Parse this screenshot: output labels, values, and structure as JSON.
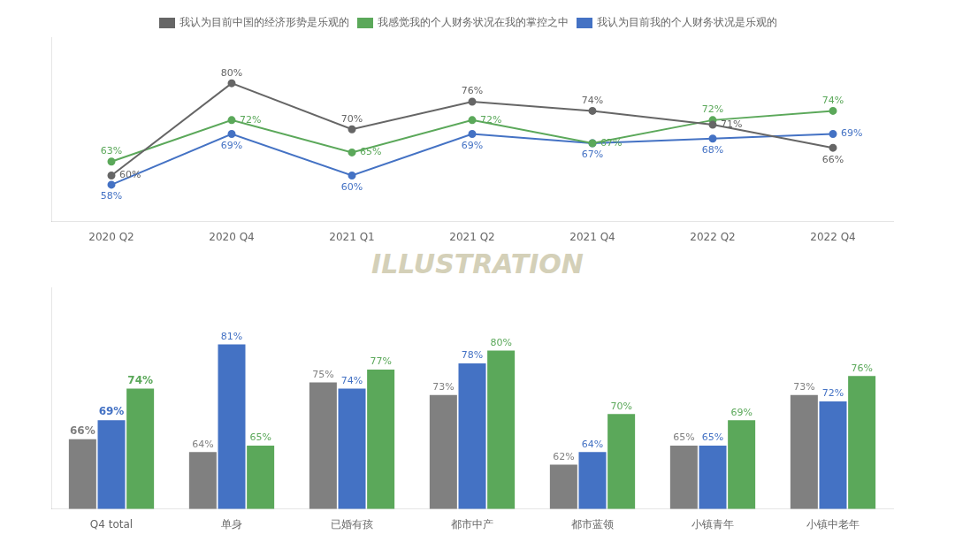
{
  "chart_data": [
    {
      "type": "line",
      "categories": [
        "2020 Q2",
        "2020 Q4",
        "2021 Q1",
        "2021 Q2",
        "2021 Q4",
        "2022 Q2",
        "2022 Q4"
      ],
      "series": [
        {
          "name": "我认为目前中国的经济形势是乐观的",
          "color": "#666666",
          "marker": "circle",
          "line_style": "solid",
          "values": [
            60,
            80,
            70,
            76,
            74,
            71,
            66
          ],
          "value_labels": [
            "60%",
            "80%",
            "70%",
            "76%",
            "74%",
            "71%",
            "66%"
          ]
        },
        {
          "name": "我感觉我的个人财务状况在我的掌控之中",
          "color": "#5ba85a",
          "marker": "circle",
          "line_style": "solid",
          "values": [
            63,
            72,
            65,
            72,
            67,
            72,
            74
          ],
          "value_labels": [
            "63%",
            "72%",
            "65%",
            "72%",
            "67%",
            "72%",
            "74%"
          ]
        },
        {
          "name": "我认为目前我的个人财务状况是乐观的",
          "color": "#4472c4",
          "marker": "circle",
          "line_style": "solid",
          "values": [
            58,
            69,
            60,
            69,
            67,
            68,
            69
          ],
          "value_labels": [
            "58%",
            "69%",
            "60%",
            "69%",
            "67%",
            "68%",
            "69%"
          ]
        }
      ],
      "ylim": [
        50,
        90
      ],
      "yticks": [],
      "grid": false,
      "legend": "top",
      "tick_labels": "x",
      "data_labels": true,
      "annotations": [
        {
          "text": "ILLUSTRATION",
          "color": "#d4d0b8"
        }
      ]
    },
    {
      "type": "bar",
      "categories": [
        "Q4 total",
        "单身",
        "已婚有孩",
        "都市中产",
        "都市蓝领",
        "小镇青年",
        "小镇中老年"
      ],
      "series": [
        {
          "name": "我认为目前中国的经济形势是乐观的",
          "color": "#808080",
          "values": [
            66,
            64,
            75,
            73,
            62,
            65,
            73
          ],
          "value_labels": [
            "66%",
            "64%",
            "75%",
            "73%",
            "62%",
            "65%",
            "73%"
          ]
        },
        {
          "name": "我认为目前我的个人财务状况是乐观的",
          "color": "#4472c4",
          "values": [
            69,
            81,
            74,
            78,
            64,
            65,
            72
          ],
          "value_labels": [
            "69%",
            "81%",
            "74%",
            "78%",
            "64%",
            "65%",
            "72%"
          ]
        },
        {
          "name": "我感觉我的个人财务状况在我的掌控之中",
          "color": "#5ba85a",
          "values": [
            74,
            65,
            77,
            80,
            70,
            69,
            76
          ],
          "value_labels": [
            "74%",
            "65%",
            "77%",
            "80%",
            "70%",
            "69%",
            "76%"
          ]
        }
      ],
      "ylim": [
        55,
        90
      ],
      "yticks": [],
      "grid": false,
      "tick_labels": "x",
      "data_labels": true
    }
  ]
}
